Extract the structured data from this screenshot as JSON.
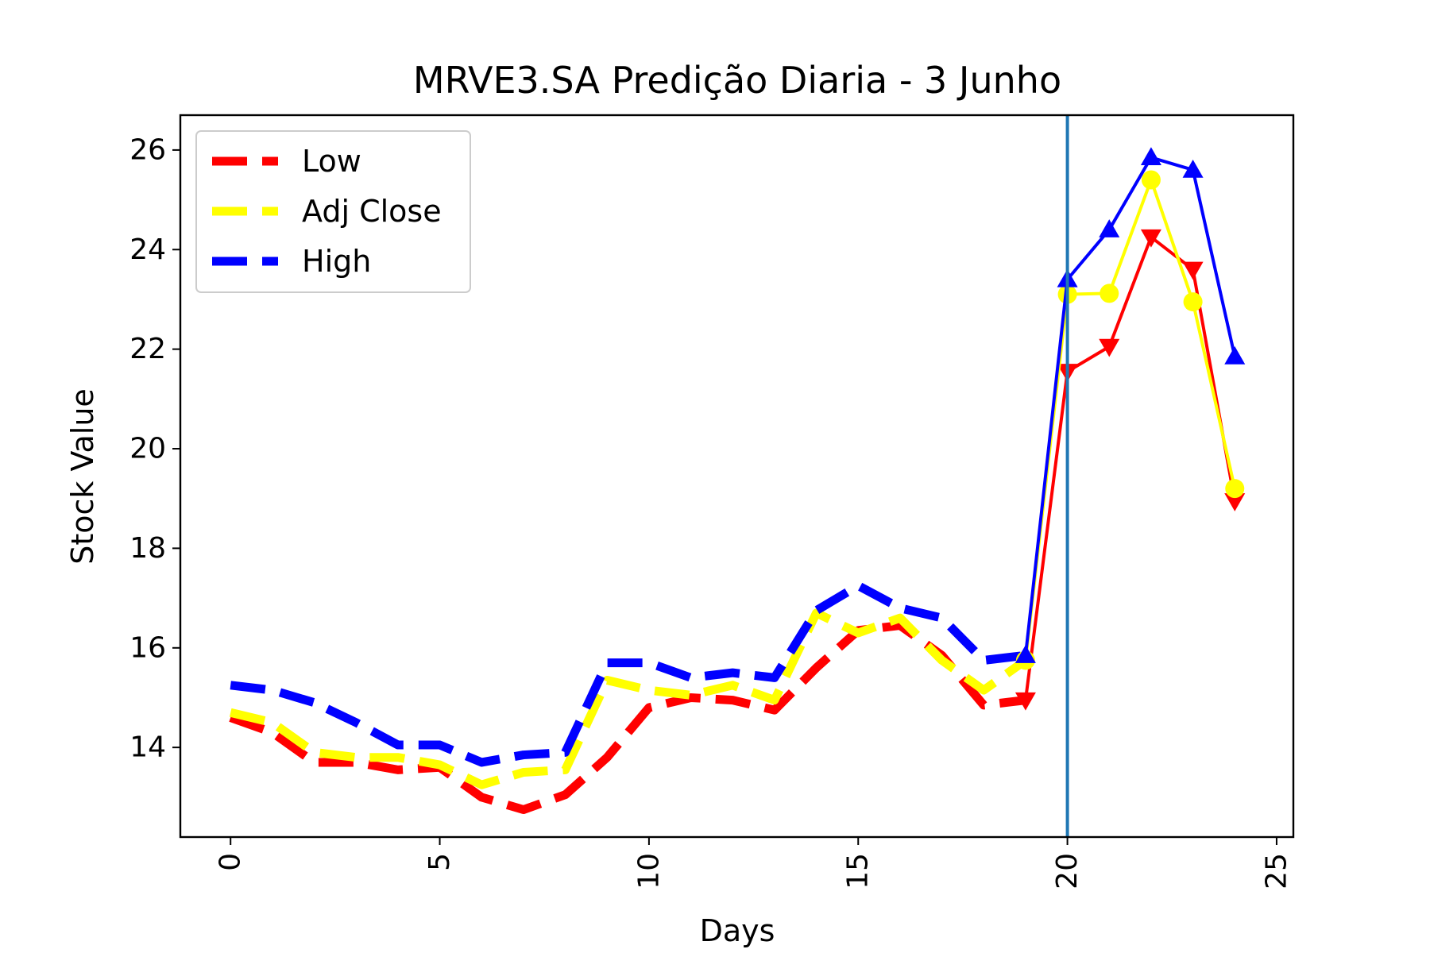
{
  "chart_data": {
    "type": "line",
    "title": "MRVE3.SA Predição Diaria - 3 Junho",
    "xlabel": "Days",
    "ylabel": "Stock Value",
    "xlim": [
      -1.2,
      25.4
    ],
    "ylim": [
      12.2,
      26.7
    ],
    "xticks": [
      0,
      5,
      10,
      15,
      20,
      25
    ],
    "yticks": [
      14,
      16,
      18,
      20,
      22,
      24,
      26
    ],
    "grid": false,
    "legend_position": "top-left",
    "split_line_x": 20,
    "split_line_color": "#1f77b4",
    "series": [
      {
        "name": "Low",
        "color": "#ff0000",
        "history_x": [
          0,
          1,
          2,
          3,
          4,
          5,
          6,
          7,
          8,
          9,
          10,
          11,
          12,
          13,
          14,
          15,
          16,
          17,
          18,
          19
        ],
        "history_y": [
          14.6,
          14.3,
          13.7,
          13.7,
          13.55,
          13.6,
          13.0,
          12.75,
          13.05,
          13.8,
          14.8,
          15.0,
          14.95,
          14.75,
          15.6,
          16.35,
          16.45,
          15.85,
          14.85,
          14.95
        ],
        "forecast_x": [
          19,
          20,
          21,
          22,
          23,
          24
        ],
        "forecast_y": [
          14.95,
          21.55,
          22.05,
          24.25,
          23.6,
          18.95
        ],
        "marker": "triangle-down"
      },
      {
        "name": "Adj Close",
        "color": "#ffff00",
        "history_x": [
          0,
          1,
          2,
          3,
          4,
          5,
          6,
          7,
          8,
          9,
          10,
          11,
          12,
          13,
          14,
          15,
          16,
          17,
          18,
          19
        ],
        "history_y": [
          14.7,
          14.5,
          13.9,
          13.8,
          13.8,
          13.65,
          13.25,
          13.5,
          13.55,
          15.35,
          15.15,
          15.05,
          15.25,
          14.95,
          16.7,
          16.3,
          16.6,
          15.75,
          15.15,
          15.75
        ],
        "forecast_x": [
          19,
          20,
          21,
          22,
          23,
          24
        ],
        "forecast_y": [
          15.75,
          23.1,
          23.12,
          25.4,
          22.95,
          19.2
        ],
        "marker": "circle"
      },
      {
        "name": "High",
        "color": "#0000ff",
        "history_x": [
          0,
          1,
          2,
          3,
          4,
          5,
          6,
          7,
          8,
          9,
          10,
          11,
          12,
          13,
          14,
          15,
          16,
          17,
          18,
          19
        ],
        "history_y": [
          15.25,
          15.15,
          14.9,
          14.5,
          14.05,
          14.05,
          13.7,
          13.85,
          13.9,
          15.7,
          15.7,
          15.4,
          15.5,
          15.4,
          16.75,
          17.25,
          16.8,
          16.6,
          15.75,
          15.85
        ],
        "forecast_x": [
          19,
          20,
          21,
          22,
          23,
          24
        ],
        "forecast_y": [
          15.85,
          23.4,
          24.4,
          25.85,
          25.6,
          21.85
        ],
        "marker": "triangle-up"
      }
    ]
  }
}
